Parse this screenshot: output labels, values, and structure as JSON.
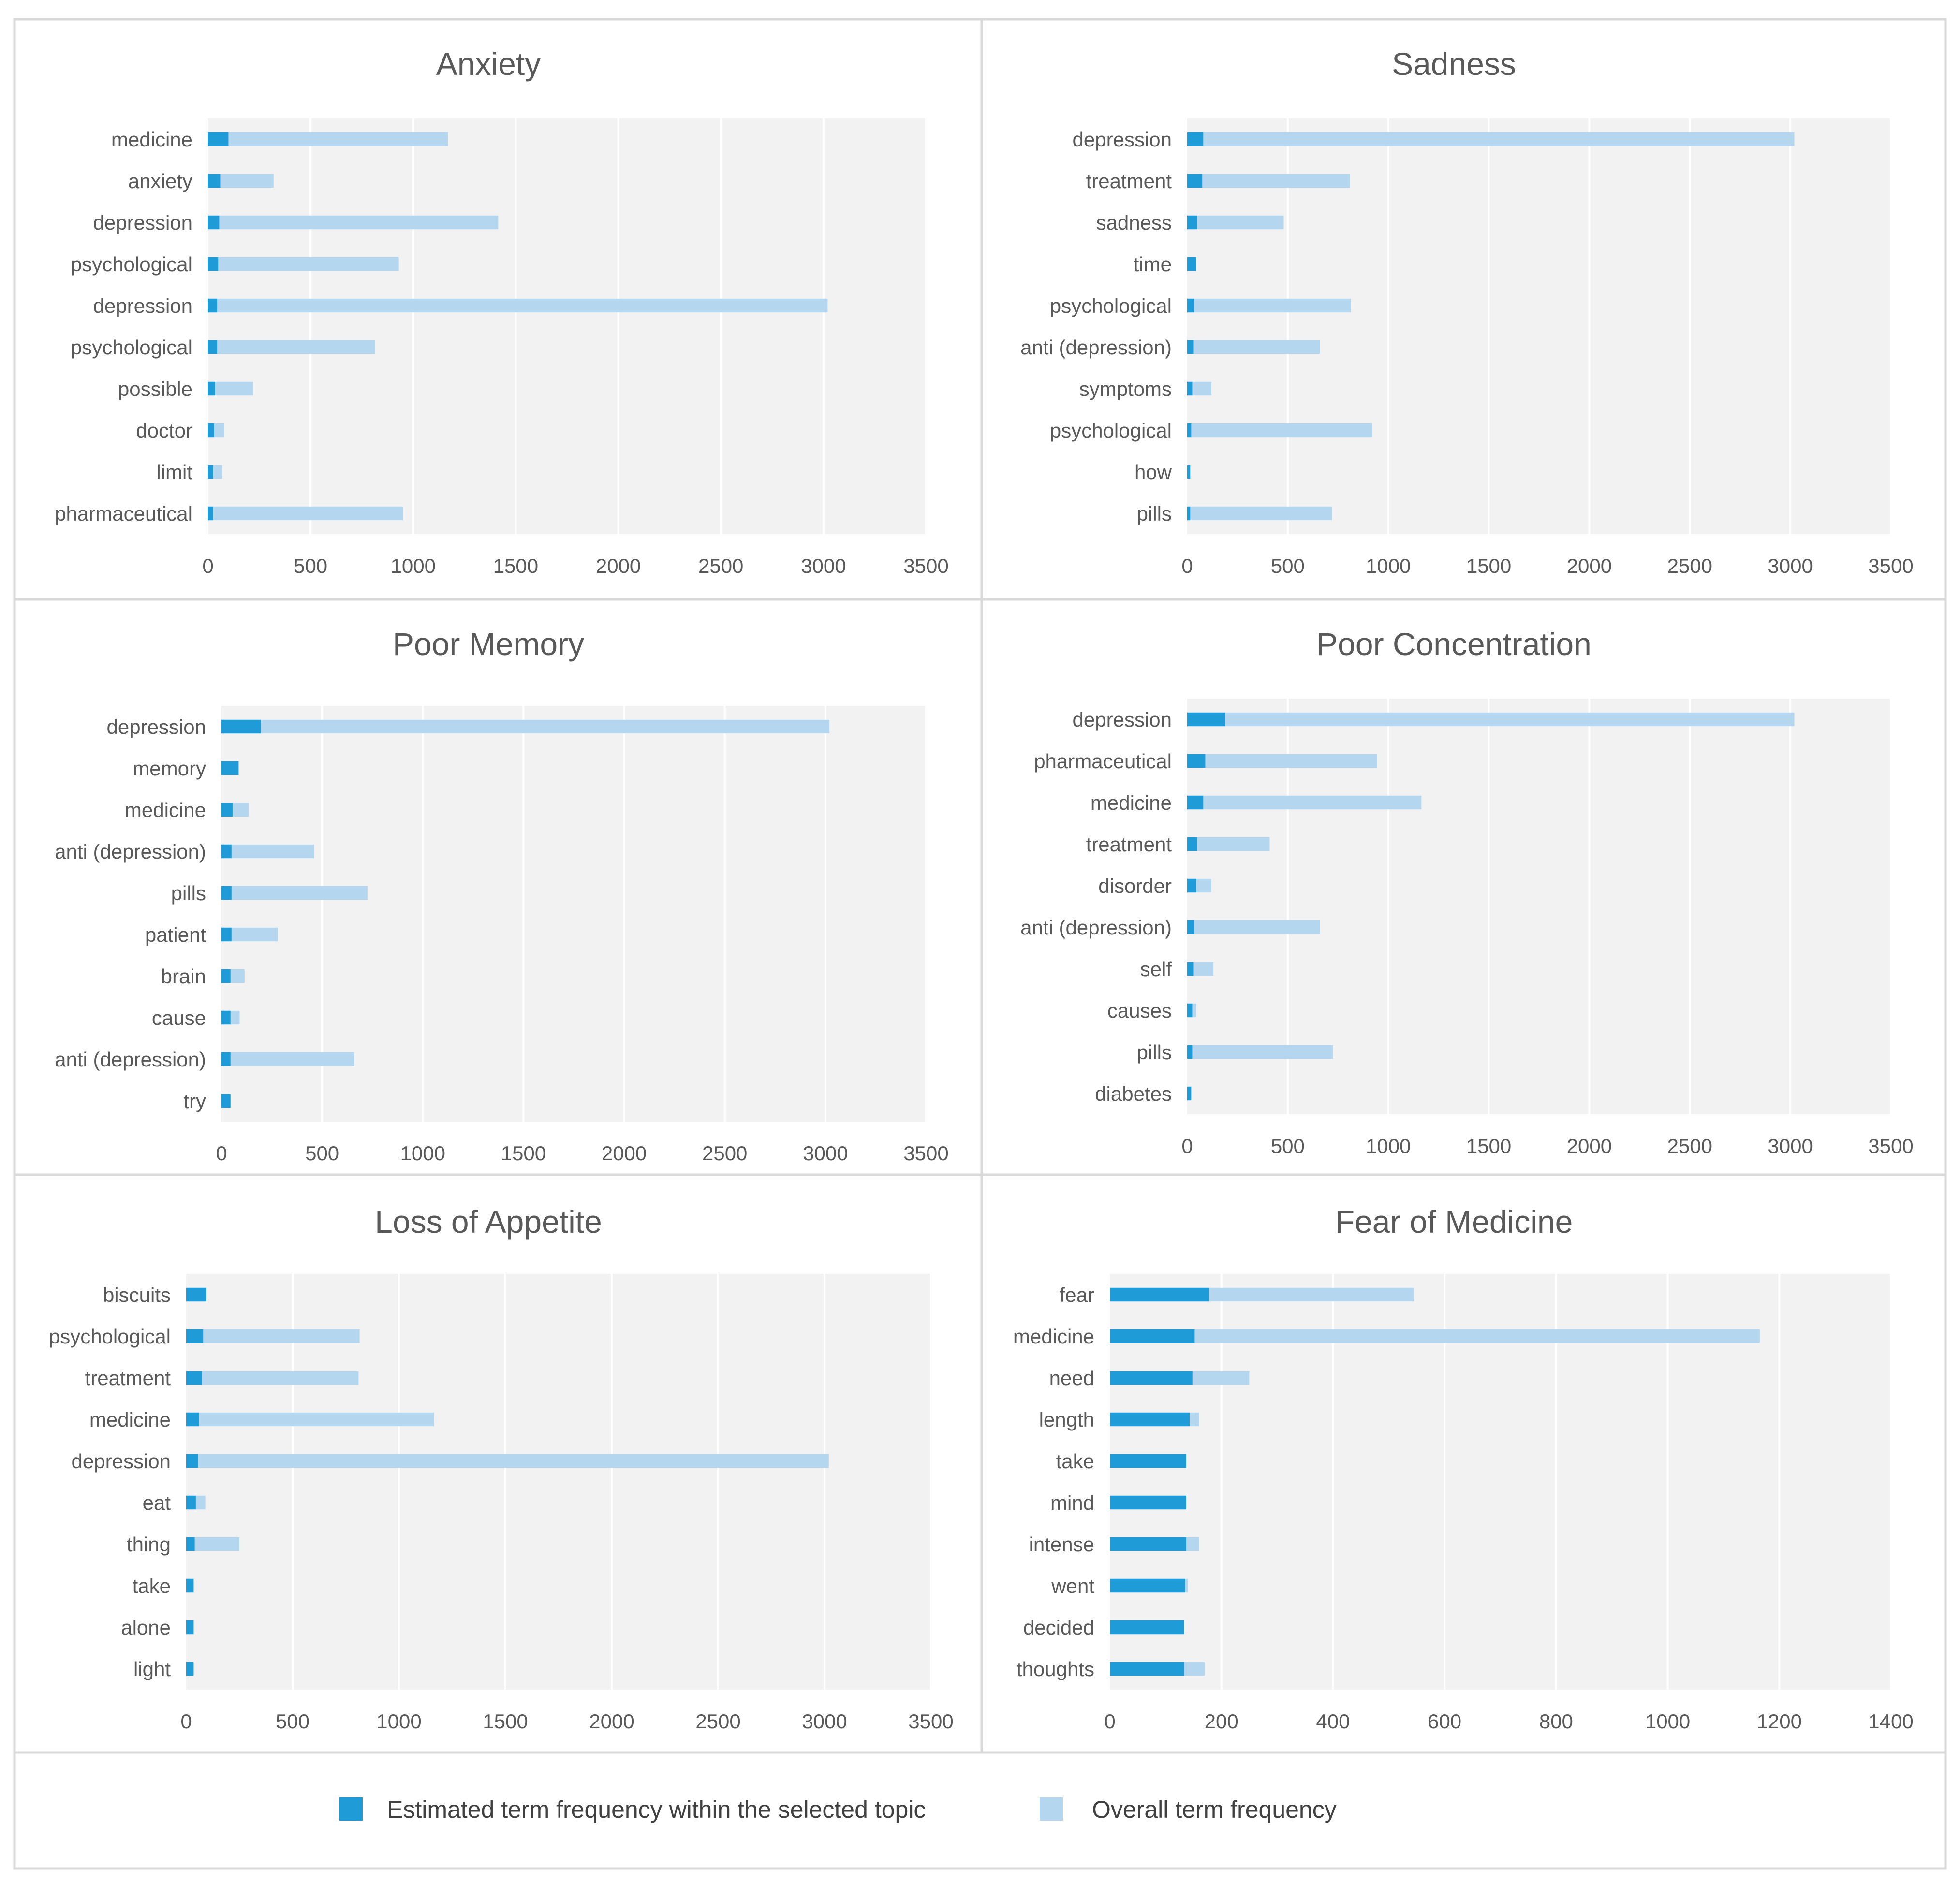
{
  "colors": {
    "topic": "#1f9bd7",
    "overall": "#b4d7ef",
    "plot_bg": "#f2f2f2",
    "text": "#595959"
  },
  "legend": {
    "topic_label": "Estimated term frequency within the selected topic",
    "overall_label": "Overall term frequency"
  },
  "chart_data": [
    {
      "type": "bar",
      "orientation": "horizontal",
      "stacked": true,
      "title": "Anxiety",
      "categories": [
        "medicine",
        "anxiety",
        "depression",
        "psychological",
        "depression",
        "psychological",
        "possible",
        "doctor",
        "limit",
        "pharmaceutical"
      ],
      "series": [
        {
          "name": "Estimated term frequency within the selected topic",
          "values": [
            100,
            60,
            55,
            50,
            45,
            45,
            35,
            30,
            25,
            25
          ]
        },
        {
          "name": "Overall term frequency",
          "values": [
            1170,
            320,
            1415,
            930,
            3020,
            815,
            220,
            80,
            70,
            950
          ]
        }
      ],
      "xlim": [
        0,
        3500
      ],
      "xticks": [
        0,
        500,
        1000,
        1500,
        2000,
        2500,
        3000,
        3500
      ]
    },
    {
      "type": "bar",
      "orientation": "horizontal",
      "stacked": true,
      "title": "Sadness",
      "categories": [
        "depression",
        "treatment",
        "sadness",
        "time",
        "psychological",
        "anti (depression)",
        "symptoms",
        "psychological",
        "how",
        "pills"
      ],
      "series": [
        {
          "name": "Estimated term frequency within the selected topic",
          "values": [
            80,
            75,
            50,
            45,
            35,
            30,
            25,
            20,
            15,
            15
          ]
        },
        {
          "name": "Overall term frequency",
          "values": [
            3020,
            810,
            480,
            45,
            815,
            660,
            120,
            920,
            15,
            720
          ]
        }
      ],
      "xlim": [
        0,
        3500
      ],
      "xticks": [
        0,
        500,
        1000,
        1500,
        2000,
        2500,
        3000,
        3500
      ]
    },
    {
      "type": "bar",
      "orientation": "horizontal",
      "stacked": true,
      "title": "Poor Memory",
      "categories": [
        "depression",
        "memory",
        "medicine",
        "anti (depression)",
        "pills",
        "patient",
        "brain",
        "cause",
        "anti (depression)",
        "try"
      ],
      "series": [
        {
          "name": "Estimated term frequency within the selected topic",
          "values": [
            195,
            85,
            55,
            50,
            50,
            50,
            45,
            45,
            45,
            45
          ]
        },
        {
          "name": "Overall term frequency",
          "values": [
            3020,
            85,
            135,
            460,
            725,
            280,
            115,
            90,
            660,
            45
          ]
        }
      ],
      "xlim": [
        0,
        3500
      ],
      "xticks": [
        0,
        500,
        1000,
        1500,
        2000,
        2500,
        3000,
        3500
      ]
    },
    {
      "type": "bar",
      "orientation": "horizontal",
      "stacked": true,
      "title": "Poor Concentration",
      "categories": [
        "depression",
        "pharmaceutical",
        "medicine",
        "treatment",
        "disorder",
        "anti (depression)",
        "self",
        "causes",
        "pills",
        "diabetes"
      ],
      "series": [
        {
          "name": "Estimated term frequency within the selected topic",
          "values": [
            190,
            90,
            80,
            50,
            45,
            35,
            30,
            25,
            25,
            20
          ]
        },
        {
          "name": "Overall term frequency",
          "values": [
            3020,
            945,
            1165,
            410,
            120,
            660,
            130,
            45,
            725,
            20
          ]
        }
      ],
      "xlim": [
        0,
        3500
      ],
      "xticks": [
        0,
        500,
        1000,
        1500,
        2000,
        2500,
        3000,
        3500
      ]
    },
    {
      "type": "bar",
      "orientation": "horizontal",
      "stacked": true,
      "title": "Loss of Appetite",
      "categories": [
        "biscuits",
        "psychological",
        "treatment",
        "medicine",
        "depression",
        "eat",
        "thing",
        "take",
        "alone",
        "light"
      ],
      "series": [
        {
          "name": "Estimated term frequency within the selected topic",
          "values": [
            95,
            80,
            75,
            60,
            55,
            45,
            40,
            35,
            35,
            35
          ]
        },
        {
          "name": "Overall term frequency",
          "values": [
            95,
            815,
            810,
            1165,
            3020,
            90,
            250,
            35,
            35,
            35
          ]
        }
      ],
      "xlim": [
        0,
        3500
      ],
      "xticks": [
        0,
        500,
        1000,
        1500,
        2000,
        2500,
        3000,
        3500
      ]
    },
    {
      "type": "bar",
      "orientation": "horizontal",
      "stacked": true,
      "title": "Fear of Medicine",
      "categories": [
        "fear",
        "medicine",
        "need",
        "length",
        "take",
        "mind",
        "intense",
        "went",
        "decided",
        "thoughts"
      ],
      "series": [
        {
          "name": "Estimated term frequency within the selected topic",
          "values": [
            178,
            152,
            148,
            143,
            137,
            137,
            137,
            135,
            133,
            133
          ]
        },
        {
          "name": "Overall term frequency",
          "values": [
            545,
            1165,
            250,
            160,
            137,
            137,
            160,
            140,
            133,
            170
          ]
        }
      ],
      "xlim": [
        0,
        1400
      ],
      "xticks": [
        0,
        200,
        400,
        600,
        800,
        1000,
        1200,
        1400
      ]
    }
  ]
}
